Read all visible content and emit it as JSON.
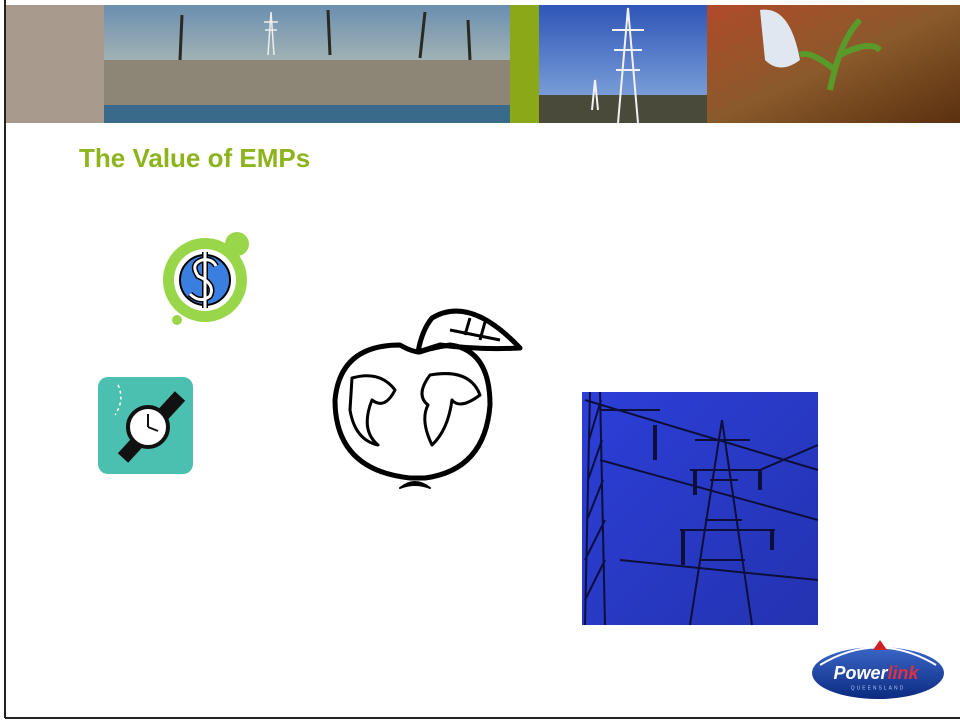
{
  "slide": {
    "title": "The Value of EMPs",
    "logo": {
      "brand": [
        "Power",
        "link"
      ],
      "subtitle": "QUEENSLAND"
    }
  }
}
